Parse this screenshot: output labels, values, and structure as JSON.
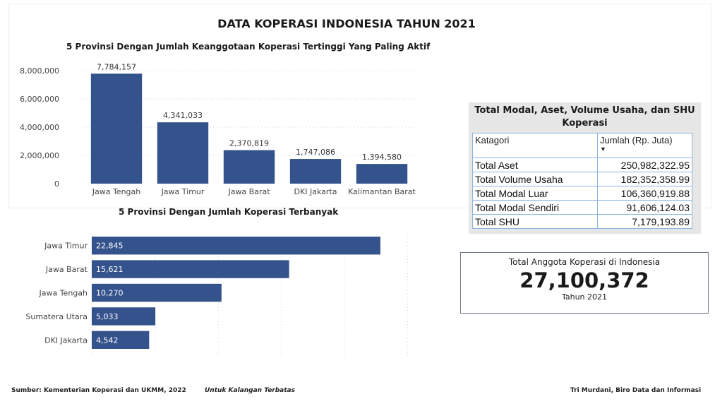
{
  "title": "DATA KOPERASI INDONESIA TAHUN 2021",
  "chart_data": [
    {
      "type": "bar",
      "orientation": "vertical",
      "title": "5 Provinsi Dengan Jumlah Keanggotaan Koperasi Tertinggi Yang Paling Aktif",
      "categories": [
        "Jawa Tengah",
        "Jawa Timur",
        "Jawa Barat",
        "DKI Jakarta",
        "Kalimantan Barat"
      ],
      "values": [
        7784157,
        4341033,
        2370819,
        1747086,
        1394580
      ],
      "data_labels": [
        "7,784,157",
        "4,341,033",
        "2,370,819",
        "1,747,086",
        "1,394,580"
      ],
      "y_ticks": [
        "0",
        "2,000,000",
        "4,000,000",
        "6,000,000",
        "8,000,000"
      ],
      "ylim": [
        0,
        8000000
      ],
      "grid": true,
      "bar_color": "#34528c"
    },
    {
      "type": "bar",
      "orientation": "horizontal",
      "title": "5 Provinsi Dengan Jumlah Koperasi Terbanyak",
      "categories": [
        "Jawa Timur",
        "Jawa Barat",
        "Jawa Tengah",
        "Sumatera Utara",
        "DKI Jakarta"
      ],
      "values": [
        22845,
        15621,
        10270,
        5033,
        4542
      ],
      "data_labels": [
        "22,845",
        "15,621",
        "10,270",
        "5,033",
        "4,542"
      ],
      "xlim": [
        0,
        25000
      ],
      "grid": true,
      "bar_color": "#34528c"
    }
  ],
  "summary_table": {
    "title": "Total Modal, Aset, Volume Usaha, dan SHU Koperasi",
    "col_category": "Katagori",
    "col_amount": "Jumlah (Rp. Juta)",
    "rows": [
      {
        "label": "Total Aset",
        "value": "250,982,322.95"
      },
      {
        "label": "Total Volume Usaha",
        "value": "182,352,358.99"
      },
      {
        "label": "Total Modal Luar",
        "value": "106,360,919.88"
      },
      {
        "label": "Total Modal Sendiri",
        "value": "91,606,124.03"
      },
      {
        "label": "Total SHU",
        "value": "7,179,193.89"
      }
    ]
  },
  "kpi": {
    "label": "Total Anggota Koperasi di Indonesia",
    "value": "27,100,372",
    "subtitle": "Tahun 2021"
  },
  "footer": {
    "source": "Sumber: Kementerian Koperasi dan UKMM, 2022",
    "note": "Untuk Kalangan Terbatas",
    "author": "Tri Murdani, Biro Data dan Informasi"
  }
}
